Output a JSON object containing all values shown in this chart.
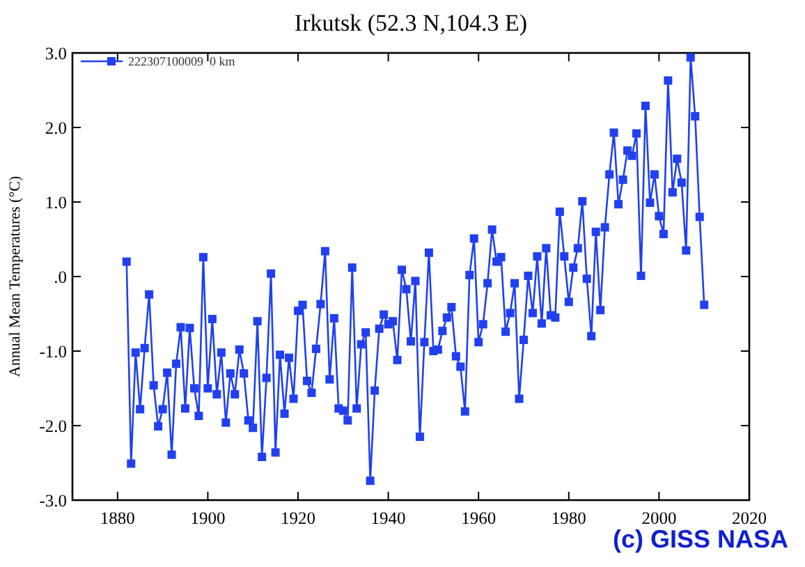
{
  "chart_data": {
    "type": "line",
    "title": "Irkutsk (52.3 N,104.3 E)",
    "ylabel": "Annual Mean Temperatures (°C)",
    "x": [
      1882,
      1883,
      1884,
      1885,
      1886,
      1887,
      1888,
      1889,
      1890,
      1891,
      1892,
      1893,
      1894,
      1895,
      1896,
      1897,
      1898,
      1899,
      1900,
      1901,
      1902,
      1903,
      1904,
      1905,
      1906,
      1907,
      1908,
      1909,
      1910,
      1911,
      1912,
      1913,
      1914,
      1915,
      1916,
      1917,
      1918,
      1919,
      1920,
      1921,
      1922,
      1923,
      1924,
      1925,
      1926,
      1927,
      1928,
      1929,
      1930,
      1931,
      1932,
      1933,
      1934,
      1935,
      1936,
      1937,
      1938,
      1939,
      1940,
      1941,
      1942,
      1943,
      1944,
      1945,
      1946,
      1947,
      1948,
      1949,
      1950,
      1951,
      1952,
      1953,
      1954,
      1955,
      1956,
      1957,
      1958,
      1959,
      1960,
      1961,
      1962,
      1963,
      1964,
      1965,
      1966,
      1967,
      1968,
      1969,
      1970,
      1971,
      1972,
      1973,
      1974,
      1975,
      1976,
      1977,
      1978,
      1979,
      1980,
      1981,
      1982,
      1983,
      1984,
      1985,
      1986,
      1987,
      1988,
      1989,
      1990,
      1991,
      1992,
      1993,
      1994,
      1995,
      1996,
      1997,
      1998,
      1999,
      2000,
      2001,
      2002,
      2003,
      2004,
      2005,
      2006,
      2007,
      2008,
      2009,
      2010
    ],
    "series": [
      {
        "name": "222307100009  0 km",
        "color": "#2040f0",
        "values": [
          0.2,
          -2.51,
          -1.02,
          -1.78,
          -0.96,
          -0.24,
          -1.46,
          -2.01,
          -1.78,
          -1.29,
          -2.39,
          -1.17,
          -0.68,
          -1.77,
          -0.69,
          -1.5,
          -1.87,
          0.26,
          -1.5,
          -0.57,
          -1.58,
          -1.02,
          -1.96,
          -1.3,
          -1.58,
          -0.98,
          -1.3,
          -1.93,
          -2.03,
          -0.6,
          -2.42,
          -1.36,
          0.04,
          -2.36,
          -1.05,
          -1.84,
          -1.09,
          -1.64,
          -0.46,
          -0.38,
          -1.4,
          -1.56,
          -0.97,
          -0.37,
          0.34,
          -1.38,
          -0.56,
          -1.77,
          -1.8,
          -1.93,
          0.12,
          -1.77,
          -0.91,
          -0.75,
          -2.74,
          -1.53,
          -0.7,
          -0.51,
          -0.64,
          -0.6,
          -1.12,
          0.09,
          -0.17,
          -0.87,
          -0.06,
          -2.15,
          -0.88,
          0.32,
          -1.0,
          -0.98,
          -0.73,
          -0.55,
          -0.41,
          -1.07,
          -1.21,
          -1.81,
          0.02,
          0.51,
          -0.88,
          -0.64,
          -0.09,
          0.63,
          0.2,
          0.26,
          -0.74,
          -0.49,
          -0.09,
          -1.64,
          -0.85,
          0.01,
          -0.49,
          0.27,
          -0.63,
          0.38,
          -0.52,
          -0.55,
          0.87,
          0.27,
          -0.34,
          0.12,
          0.38,
          1.01,
          -0.03,
          -0.8,
          0.6,
          -0.45,
          0.66,
          1.37,
          1.93,
          0.97,
          1.3,
          1.69,
          1.62,
          1.92,
          0.01,
          2.29,
          0.99,
          1.37,
          0.81,
          0.57,
          2.63,
          1.13,
          1.58,
          1.26,
          0.35,
          2.94,
          2.15,
          0.8,
          -0.38
        ]
      }
    ],
    "xlim": [
      1870,
      2020
    ],
    "xticks": [
      1880,
      1900,
      1920,
      1940,
      1960,
      1980,
      2000,
      2020
    ],
    "ylim": [
      -3,
      3
    ],
    "yticks": [
      {
        "value": -3,
        "label": "-3.0"
      },
      {
        "value": -2,
        "label": "-2.0"
      },
      {
        "value": -1,
        "label": "-1.0"
      },
      {
        "value": 0,
        "label": ".0"
      },
      {
        "value": 1,
        "label": "1.0"
      },
      {
        "value": 2,
        "label": "2.0"
      },
      {
        "value": 3,
        "label": "3.0"
      }
    ],
    "marker": "square",
    "legend": "top left",
    "grid": false,
    "annotations": [
      "(c) GISS NASA"
    ]
  }
}
